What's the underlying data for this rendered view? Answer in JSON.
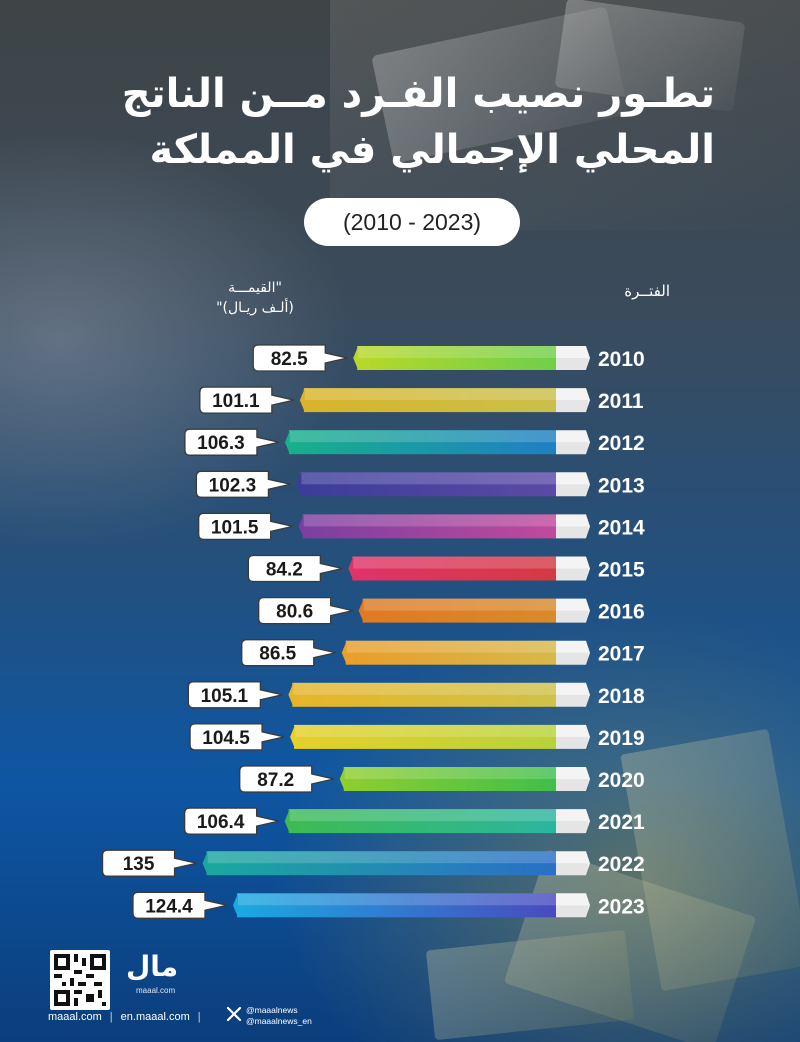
{
  "title_line1": "تطـور نصيب الفـرد مــن الناتج",
  "title_line2": "المحلي الإجمالي في المملكة",
  "period_range": "(2010 - 2023)",
  "header_period": "الفتــرة",
  "header_value_line1": "\"القيمـــة",
  "header_value_line2": "(ألـف ريـال)\"",
  "logo": {
    "text": "مال",
    "sub": "maaal.com"
  },
  "footer": {
    "site_ar": "maaal.com",
    "site_en": "en.maaal.com",
    "handle1": "@maaalnews",
    "handle2": "@maaalnews_en",
    "sep": "|"
  },
  "chart_data": {
    "type": "bar",
    "orientation": "horizontal",
    "title": "تطـور نصيب الفـرد مــن الناتج المحلي الإجمالي في المملكة",
    "xlabel": "\"القيمـــة (ألـف ريـال)\"",
    "ylabel": "الفتــرة",
    "categories": [
      "2010",
      "2011",
      "2012",
      "2013",
      "2014",
      "2015",
      "2016",
      "2017",
      "2018",
      "2019",
      "2020",
      "2021",
      "2022",
      "2023"
    ],
    "values": [
      82.5,
      101.1,
      106.3,
      102.3,
      101.5,
      84.2,
      80.6,
      86.5,
      105.1,
      104.5,
      87.2,
      106.4,
      135,
      124.4
    ],
    "value_labels": [
      "82.5",
      "101.1",
      "106.3",
      "102.3",
      "101.5",
      "84.2",
      "80.6",
      "86.5",
      "105.1",
      "104.5",
      "87.2",
      "106.4",
      "135",
      "124.4"
    ],
    "bar_colors": [
      [
        "#b8d82a",
        "#6fcf4a"
      ],
      [
        "#d9b42a",
        "#c9c04a"
      ],
      [
        "#17b08a",
        "#1f7fc4"
      ],
      [
        "#3d3c9a",
        "#5b4aa6"
      ],
      [
        "#7c3fa0",
        "#c04a9c"
      ],
      [
        "#e0336a",
        "#d43a42"
      ],
      [
        "#e07a22",
        "#d98a2a"
      ],
      [
        "#e89e2a",
        "#d8b84a"
      ],
      [
        "#e7b52a",
        "#cfc24a"
      ],
      [
        "#e6d02a",
        "#b8d23a"
      ],
      [
        "#8fce2e",
        "#3fbf4a"
      ],
      [
        "#3dbb52",
        "#2bb5a0"
      ],
      [
        "#1aa89e",
        "#2a6fc8"
      ],
      [
        "#1aa9e0",
        "#4a4ac0"
      ]
    ],
    "legend": "none",
    "grid": false
  }
}
